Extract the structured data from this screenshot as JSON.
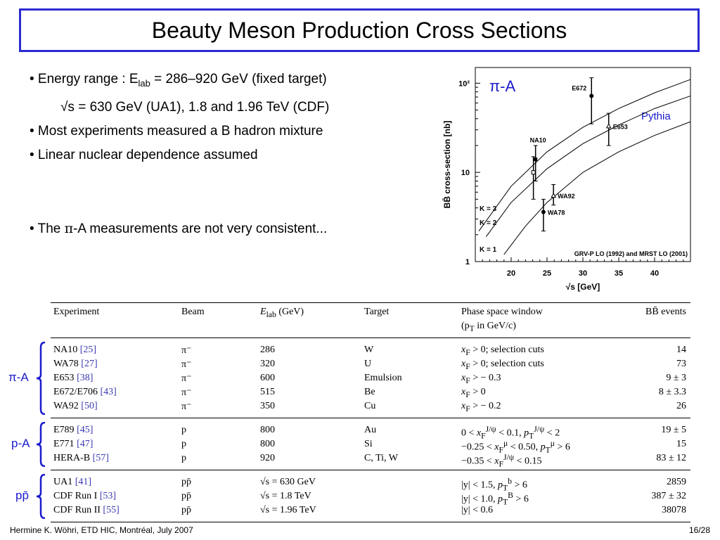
{
  "title": "Beauty Meson Production Cross Sections",
  "bullets": {
    "b1_pre": "• Energy range : E",
    "b1_sub": "lab",
    "b1_post": " = 286–920 GeV (fixed target)",
    "b2": "√s = 630 GeV (UA1), 1.8 and 1.96 TeV (CDF)",
    "b3": "• Most experiments measured a B hadron mixture",
    "b4": "• Linear nuclear dependence assumed",
    "b5_pre": "• The ",
    "b5_pi": "π",
    "b5_post": "-A measurements are not very consistent..."
  },
  "chart_data": {
    "type": "scatter",
    "title": "π-A",
    "xlabel": "√s [GeV]",
    "ylabel": "BB̄ cross-section [nb]",
    "xlim": [
      15,
      45
    ],
    "ylim": [
      1,
      150
    ],
    "yscale": "log",
    "x_ticks": [
      20,
      25,
      30,
      35,
      40
    ],
    "y_ticks": [
      {
        "v": 1,
        "label": "1"
      },
      {
        "v": 10,
        "label": "10"
      },
      {
        "v": 100,
        "label": "10²"
      }
    ],
    "points": [
      {
        "name": "E672",
        "x": 31.2,
        "y": 72,
        "lo": 35,
        "hi": 115,
        "marker": "filled-circle"
      },
      {
        "name": "E653",
        "x": 33.6,
        "y": 33,
        "lo": 20,
        "hi": 46,
        "marker": "triangle"
      },
      {
        "name": "NA10",
        "x": 23.4,
        "y": 14,
        "lo": 8,
        "hi": 20,
        "marker": "filled-square"
      },
      {
        "name": "",
        "x": 23.1,
        "y": 10,
        "lo": 5,
        "hi": 15,
        "marker": "open-square"
      },
      {
        "name": "WA92",
        "x": 25.9,
        "y": 5.5,
        "lo": 4.3,
        "hi": 7.3,
        "marker": "triangle"
      },
      {
        "name": "WA78",
        "x": 24.5,
        "y": 3.6,
        "lo": 2.2,
        "hi": 5.0,
        "marker": "filled-circle"
      }
    ],
    "curves": [
      {
        "name": "K = 3",
        "x": [
          15.5,
          20,
          25,
          30,
          35,
          40,
          45
        ],
        "y": [
          2.2,
          7,
          17,
          32,
          52,
          78,
          110
        ]
      },
      {
        "name": "K = 2",
        "x": [
          16.5,
          20,
          25,
          30,
          35,
          40,
          45
        ],
        "y": [
          1.9,
          4.6,
          11,
          21,
          34,
          52,
          72
        ]
      },
      {
        "name": "K = 1",
        "x": [
          19,
          22,
          25,
          30,
          35,
          40,
          45
        ],
        "y": [
          1.2,
          2.5,
          4.6,
          10,
          17,
          26,
          37
        ]
      }
    ],
    "annotations": {
      "pythia": "Pythia",
      "grv": "GRV-P LO (1992) and MRST LO (2001)"
    }
  },
  "table": {
    "headers": {
      "experiment": "Experiment",
      "beam": "Beam",
      "energy_pre": "E",
      "energy_sub": "lab",
      "energy_post": " (GeV)",
      "target": "Target",
      "ps1": "Phase space window",
      "ps2": "(p",
      "ps2_sub": "T",
      "ps2_post": " in GeV/c)",
      "events": "BB̄ events"
    },
    "groups": [
      {
        "label": "π-A",
        "rows": [
          {
            "exp": "NA10",
            "ref": "[25]",
            "beam": "π⁻",
            "energy": "286",
            "target": "W",
            "ps": "xF > 0; selection cuts",
            "events": "14"
          },
          {
            "exp": "WA78",
            "ref": "[27]",
            "beam": "π⁻",
            "energy": "320",
            "target": "U",
            "ps": "xF > 0; selection cuts",
            "events": "73"
          },
          {
            "exp": "E653",
            "ref": "[38]",
            "beam": "π⁻",
            "energy": "600",
            "target": "Emulsion",
            "ps": "xF > − 0.3",
            "events": "9 ± 3"
          },
          {
            "exp": "E672/E706",
            "ref": "[43]",
            "beam": "π⁻",
            "energy": "515",
            "target": "Be",
            "ps": "xF > 0",
            "events": "8 ± 3.3"
          },
          {
            "exp": "WA92",
            "ref": "[50]",
            "beam": "π⁻",
            "energy": "350",
            "target": "Cu",
            "ps": "xF > − 0.2",
            "events": "26"
          }
        ]
      },
      {
        "label": "p-A",
        "rows": [
          {
            "exp": "E789",
            "ref": "[45]",
            "beam": "p",
            "energy": "800",
            "target": "Au",
            "ps": "0 < xF^J/ψ < 0.1, pT^J/ψ < 2",
            "events": "19 ± 5"
          },
          {
            "exp": "E771",
            "ref": "[47]",
            "beam": "p",
            "energy": "800",
            "target": "Si",
            "ps": "−0.25 < xF^μ < 0.50, pT^μ > 6",
            "events": "15"
          },
          {
            "exp": "HERA-B",
            "ref": "[57]",
            "beam": "p",
            "energy": "920",
            "target": "C, Ti, W",
            "ps": "−0.35 < xF^J/ψ < 0.15",
            "events": "83 ± 12"
          }
        ]
      },
      {
        "label": "pp̄",
        "rows": [
          {
            "exp": "UA1",
            "ref": "[41]",
            "beam": "pp̄",
            "energy": "√s = 630 GeV",
            "target": "",
            "ps": "|y| < 1.5, pT^b > 6",
            "events": "2859"
          },
          {
            "exp": "CDF Run I",
            "ref": "[53]",
            "beam": "pp̄",
            "energy": "√s = 1.8 TeV",
            "target": "",
            "ps": "|y| < 1.0, pT^B > 6",
            "events": "387 ± 32"
          },
          {
            "exp": "CDF Run II",
            "ref": "[55]",
            "beam": "pp̄",
            "energy": "√s = 1.96 TeV",
            "target": "",
            "ps": "|y| < 0.6",
            "events": "38078"
          }
        ]
      }
    ]
  },
  "footer": {
    "left": "Hermine K. Wöhri, ETD HIC, Montréal, July 2007",
    "right": "16/28"
  }
}
